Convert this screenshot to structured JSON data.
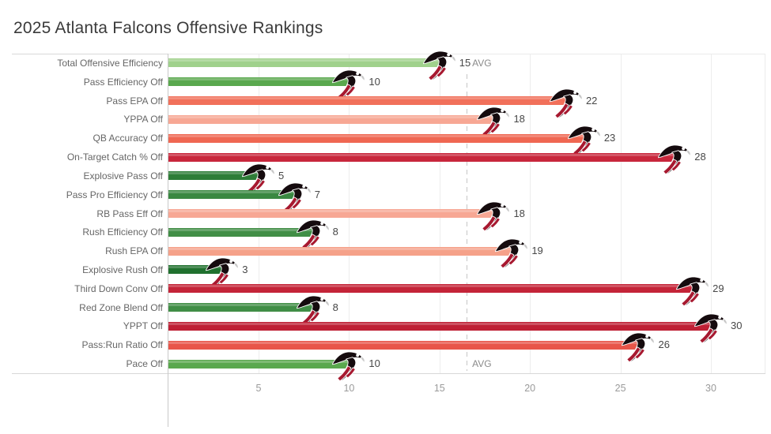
{
  "title": "2025 Atlanta Falcons Offensive Rankings",
  "chart_data": {
    "type": "bar",
    "orientation": "horizontal",
    "title": "2025 Atlanta Falcons Offensive Rankings",
    "categories": [
      "Total Offensive Efficiency",
      "Pass Efficiency Off",
      "Pass EPA Off",
      "YPPA Off",
      "QB Accuracy Off",
      "On-Target Catch % Off",
      "Explosive Pass Off",
      "Pass Pro Efficiency Off",
      "RB Pass Eff Off",
      "Rush Efficiency Off",
      "Rush EPA Off",
      "Explosive Rush Off",
      "Third Down Conv Off",
      "Red Zone Blend Off",
      "YPPT Off",
      "Pass:Run Ratio Off",
      "Pace Off"
    ],
    "values": [
      15,
      10,
      22,
      18,
      23,
      28,
      5,
      7,
      18,
      8,
      19,
      3,
      29,
      8,
      30,
      26,
      10
    ],
    "bar_colors": [
      "#a0d18c",
      "#5aa84e",
      "#f1705a",
      "#f7a794",
      "#ef6752",
      "#c8273c",
      "#2e7d38",
      "#3a8842",
      "#f7a794",
      "#418e46",
      "#f5a189",
      "#20702e",
      "#c42438",
      "#418e46",
      "#bf2035",
      "#e85549",
      "#5aa84e"
    ],
    "x_ticks": [
      5,
      10,
      15,
      20,
      25,
      30
    ],
    "xlim": [
      0,
      33
    ],
    "grid": true,
    "legend": "none",
    "reference_line": {
      "label": "AVG",
      "value": 16.5,
      "style": "dashed"
    },
    "mark_icon": "atlanta-falcons-logo",
    "icon_colors": {
      "black": "#150b0e",
      "red": "#a71930",
      "outline": "#ffffff",
      "beak": "#c9c9c9"
    }
  },
  "colors": {
    "background": "#ffffff",
    "title_text": "#3a3a3a",
    "category_text": "#666666",
    "value_text": "#474747",
    "tick_text": "#9a9a9a",
    "axis_line": "#c9c9c9",
    "grid_line": "#ededed",
    "reference_line": "#c6c6c6"
  }
}
